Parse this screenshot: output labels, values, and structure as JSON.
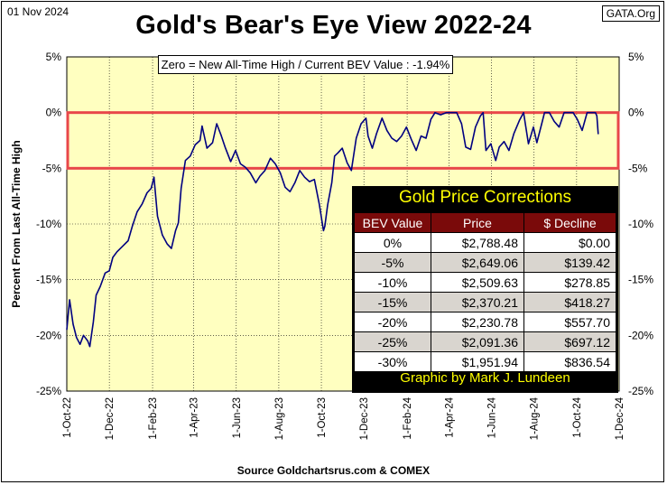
{
  "header": {
    "date": "01 Nov 2024",
    "source_badge": "GATA.Org",
    "title": "Gold's Bear's Eye View 2022-24"
  },
  "subtitle": "Zero = New  All-Time High / Current  BEV Value : -1.94%",
  "footer": "Source Goldchartsrus.com  & COMEX",
  "colors": {
    "plot_background": "#ffffc0",
    "line": "#000080",
    "highlight_box": "#e8474a",
    "table_header": "#7a0a0a",
    "table_title_text": "#ffff00"
  },
  "table": {
    "title": "Gold Price Corrections",
    "headers": [
      "BEV Value",
      "Price",
      "$ Decline"
    ],
    "rows": [
      [
        "0%",
        "$2,788.48",
        "$0.00"
      ],
      [
        "-5%",
        "$2,649.06",
        "$139.42"
      ],
      [
        "-10%",
        "$2,509.63",
        "$278.85"
      ],
      [
        "-15%",
        "$2,370.21",
        "$418.27"
      ],
      [
        "-20%",
        "$2,230.78",
        "$557.70"
      ],
      [
        "-25%",
        "$2,091.36",
        "$697.12"
      ],
      [
        "-30%",
        "$1,951.94",
        "$836.54"
      ]
    ],
    "credit": "Graphic by Mark J. Lundeen"
  },
  "chart_data": {
    "type": "line",
    "title": "Gold's Bear's Eye View 2022-24",
    "ylabel": "Percent   From  Last  All-Time  High",
    "xlabel": "",
    "ylim": [
      -25,
      5
    ],
    "xlim": [
      "2022-10-01",
      "2024-12-01"
    ],
    "y_ticks": [
      "5%",
      "0%",
      "-5%",
      "-10%",
      "-15%",
      "-20%",
      "-25%"
    ],
    "x_ticks": [
      "1-Oct-22",
      "1-Dec-22",
      "1-Feb-23",
      "1-Apr-23",
      "1-Jun-23",
      "1-Aug-23",
      "1-Oct-23",
      "1-Dec-23",
      "1-Feb-24",
      "1-Apr-24",
      "1-Jun-24",
      "1-Aug-24",
      "1-Oct-24",
      "1-Dec-24"
    ],
    "highlight_band": [
      -5,
      0
    ],
    "grid": true,
    "series": [
      {
        "values": [
          [
            "2022-10-01",
            -19.5
          ],
          [
            "2022-10-05",
            -16.8
          ],
          [
            "2022-10-10",
            -19.0
          ],
          [
            "2022-10-15",
            -20.2
          ],
          [
            "2022-10-20",
            -20.8
          ],
          [
            "2022-10-25",
            -20.0
          ],
          [
            "2022-10-31",
            -20.5
          ],
          [
            "2022-11-03",
            -21.0
          ],
          [
            "2022-11-08",
            -18.8
          ],
          [
            "2022-11-12",
            -16.4
          ],
          [
            "2022-11-18",
            -15.6
          ],
          [
            "2022-11-25",
            -14.4
          ],
          [
            "2022-12-01",
            -14.2
          ],
          [
            "2022-12-06",
            -13.0
          ],
          [
            "2022-12-12",
            -12.5
          ],
          [
            "2022-12-20",
            -12.0
          ],
          [
            "2022-12-28",
            -11.5
          ],
          [
            "2023-01-03",
            -10.2
          ],
          [
            "2023-01-10",
            -8.9
          ],
          [
            "2023-01-17",
            -8.2
          ],
          [
            "2023-01-24",
            -7.2
          ],
          [
            "2023-01-30",
            -6.8
          ],
          [
            "2023-02-03",
            -5.8
          ],
          [
            "2023-02-08",
            -9.3
          ],
          [
            "2023-02-15",
            -11.0
          ],
          [
            "2023-02-22",
            -11.8
          ],
          [
            "2023-02-28",
            -12.2
          ],
          [
            "2023-03-06",
            -10.6
          ],
          [
            "2023-03-10",
            -9.9
          ],
          [
            "2023-03-14",
            -6.8
          ],
          [
            "2023-03-20",
            -4.3
          ],
          [
            "2023-03-27",
            -3.9
          ],
          [
            "2023-04-03",
            -2.9
          ],
          [
            "2023-04-10",
            -2.5
          ],
          [
            "2023-04-13",
            -1.2
          ],
          [
            "2023-04-20",
            -3.2
          ],
          [
            "2023-04-28",
            -2.7
          ],
          [
            "2023-05-04",
            -1.0
          ],
          [
            "2023-05-10",
            -2.0
          ],
          [
            "2023-05-16",
            -3.1
          ],
          [
            "2023-05-24",
            -4.4
          ],
          [
            "2023-05-31",
            -3.4
          ],
          [
            "2023-06-07",
            -4.6
          ],
          [
            "2023-06-14",
            -4.9
          ],
          [
            "2023-06-21",
            -5.4
          ],
          [
            "2023-06-29",
            -6.3
          ],
          [
            "2023-07-05",
            -5.7
          ],
          [
            "2023-07-12",
            -5.2
          ],
          [
            "2023-07-20",
            -4.1
          ],
          [
            "2023-07-27",
            -4.6
          ],
          [
            "2023-08-03",
            -5.4
          ],
          [
            "2023-08-10",
            -6.7
          ],
          [
            "2023-08-17",
            -7.1
          ],
          [
            "2023-08-24",
            -6.3
          ],
          [
            "2023-08-31",
            -5.2
          ],
          [
            "2023-09-07",
            -5.8
          ],
          [
            "2023-09-14",
            -6.2
          ],
          [
            "2023-09-21",
            -6.0
          ],
          [
            "2023-09-28",
            -8.2
          ],
          [
            "2023-10-04",
            -10.6
          ],
          [
            "2023-10-06",
            -10.2
          ],
          [
            "2023-10-10",
            -8.3
          ],
          [
            "2023-10-16",
            -6.3
          ],
          [
            "2023-10-20",
            -3.9
          ],
          [
            "2023-10-25",
            -3.6
          ],
          [
            "2023-10-31",
            -3.2
          ],
          [
            "2023-11-07",
            -4.5
          ],
          [
            "2023-11-13",
            -5.2
          ],
          [
            "2023-11-20",
            -2.3
          ],
          [
            "2023-11-27",
            -1.0
          ],
          [
            "2023-12-04",
            -0.5
          ],
          [
            "2023-12-07",
            -2.1
          ],
          [
            "2023-12-13",
            -3.2
          ],
          [
            "2023-12-19",
            -1.9
          ],
          [
            "2023-12-27",
            -0.5
          ],
          [
            "2024-01-03",
            -1.6
          ],
          [
            "2024-01-10",
            -2.3
          ],
          [
            "2024-01-17",
            -2.6
          ],
          [
            "2024-01-24",
            -2.1
          ],
          [
            "2024-01-31",
            -1.3
          ],
          [
            "2024-02-07",
            -2.4
          ],
          [
            "2024-02-14",
            -3.4
          ],
          [
            "2024-02-21",
            -2.1
          ],
          [
            "2024-02-28",
            -2.3
          ],
          [
            "2024-03-06",
            -0.6
          ],
          [
            "2024-03-12",
            0.0
          ],
          [
            "2024-03-20",
            -0.2
          ],
          [
            "2024-03-28",
            0.0
          ],
          [
            "2024-04-04",
            0.0
          ],
          [
            "2024-04-12",
            0.0
          ],
          [
            "2024-04-19",
            -1.0
          ],
          [
            "2024-04-25",
            -3.1
          ],
          [
            "2024-05-02",
            -3.3
          ],
          [
            "2024-05-09",
            -1.3
          ],
          [
            "2024-05-16",
            -0.3
          ],
          [
            "2024-05-20",
            0.0
          ],
          [
            "2024-05-24",
            -3.4
          ],
          [
            "2024-05-31",
            -2.8
          ],
          [
            "2024-06-07",
            -4.3
          ],
          [
            "2024-06-12",
            -3.1
          ],
          [
            "2024-06-19",
            -2.6
          ],
          [
            "2024-06-26",
            -3.4
          ],
          [
            "2024-07-03",
            -1.9
          ],
          [
            "2024-07-11",
            -0.7
          ],
          [
            "2024-07-17",
            0.0
          ],
          [
            "2024-07-24",
            -2.8
          ],
          [
            "2024-07-31",
            -1.3
          ],
          [
            "2024-08-05",
            -2.7
          ],
          [
            "2024-08-12",
            -1.0
          ],
          [
            "2024-08-16",
            0.0
          ],
          [
            "2024-08-23",
            0.0
          ],
          [
            "2024-08-30",
            -0.8
          ],
          [
            "2024-09-06",
            -1.3
          ],
          [
            "2024-09-13",
            0.0
          ],
          [
            "2024-09-20",
            0.0
          ],
          [
            "2024-09-26",
            0.0
          ],
          [
            "2024-10-02",
            -0.6
          ],
          [
            "2024-10-09",
            -1.6
          ],
          [
            "2024-10-16",
            0.0
          ],
          [
            "2024-10-23",
            0.0
          ],
          [
            "2024-10-28",
            0.0
          ],
          [
            "2024-10-30",
            -0.3
          ],
          [
            "2024-11-01",
            -1.94
          ]
        ]
      }
    ]
  }
}
